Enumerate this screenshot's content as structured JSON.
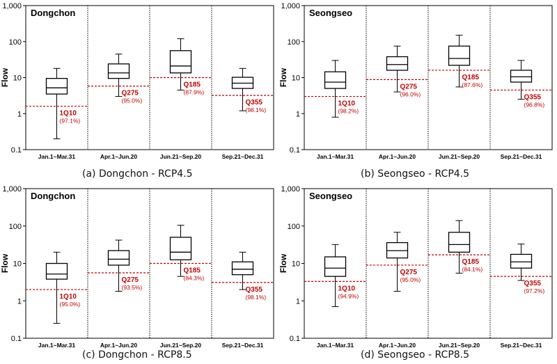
{
  "figure": {
    "captions": [
      "(a) Dongchon - RCP4.5",
      "(b) Seongseo - RCP4.5",
      "(c) Dongchon - RCP8.5",
      "(d) Seongseo - RCP8.5"
    ]
  },
  "chart_data": [
    {
      "type": "box",
      "station": "Dongchon",
      "scenario": "RCP4.5",
      "ylabel": "Flow",
      "yscale": "log",
      "ylim": [
        0.1,
        1000
      ],
      "yticks": [
        "0.1",
        "1",
        "10",
        "100",
        "1,000"
      ],
      "categories": [
        "Jan.1~Mar.31",
        "Apr.1~Jun.20",
        "Jun.21~Sep.20",
        "Sep.21~Dec.31"
      ],
      "boxes": [
        {
          "min": 0.2,
          "q1": 3.5,
          "median": 5.2,
          "q3": 9.5,
          "max": 18
        },
        {
          "min": 3.0,
          "q1": 9.5,
          "median": 13.5,
          "q3": 24,
          "max": 45
        },
        {
          "min": 4.5,
          "q1": 13.5,
          "median": 21,
          "q3": 56,
          "max": 120
        },
        {
          "min": 1.2,
          "q1": 5.0,
          "median": 7.0,
          "q3": 10.2,
          "max": 18
        }
      ],
      "thresholds": [
        {
          "label": "1Q10",
          "pct": "(97.1%)",
          "value": 1.6
        },
        {
          "label": "Q275",
          "pct": "(95.0%)",
          "value": 5.8
        },
        {
          "label": "Q185",
          "pct": "(87.9%)",
          "value": 10.0
        },
        {
          "label": "Q355",
          "pct": "(98.1%)",
          "value": 3.2
        }
      ]
    },
    {
      "type": "box",
      "station": "Seongseo",
      "scenario": "RCP4.5",
      "ylabel": "Flow",
      "yscale": "log",
      "ylim": [
        0.1,
        1000
      ],
      "yticks": [
        "0.1",
        "1",
        "10",
        "100",
        "1,000"
      ],
      "categories": [
        "Jan.1~Mar.31",
        "Apr.1~Jun.20",
        "Jun.21~Sep.20",
        "Sep.21~Dec.31"
      ],
      "boxes": [
        {
          "min": 0.8,
          "q1": 5.0,
          "median": 7.5,
          "q3": 14.5,
          "max": 30
        },
        {
          "min": 4.0,
          "q1": 16,
          "median": 23,
          "q3": 38,
          "max": 75
        },
        {
          "min": 5.5,
          "q1": 22,
          "median": 34,
          "q3": 75,
          "max": 150
        },
        {
          "min": 2.5,
          "q1": 7.5,
          "median": 10.5,
          "q3": 16,
          "max": 30
        }
      ],
      "thresholds": [
        {
          "label": "1Q10",
          "pct": "(98.2%)",
          "value": 3.0
        },
        {
          "label": "Q275",
          "pct": "(96.0%)",
          "value": 8.8
        },
        {
          "label": "Q185",
          "pct": "(87.6%)",
          "value": 16.0
        },
        {
          "label": "Q355",
          "pct": "(96.8%)",
          "value": 4.5
        }
      ]
    },
    {
      "type": "box",
      "station": "Dongchon",
      "scenario": "RCP8.5",
      "ylabel": "Flow",
      "yscale": "log",
      "ylim": [
        0.1,
        1000
      ],
      "yticks": [
        "0.1",
        "1",
        "10",
        "100",
        "1,000"
      ],
      "categories": [
        "Jan.1~Mar.31",
        "Apr.1~Jun.20",
        "Jun.21~Sep.20",
        "Sep.21~Dec.31"
      ],
      "boxes": [
        {
          "min": 0.25,
          "q1": 3.8,
          "median": 5.2,
          "q3": 10,
          "max": 20
        },
        {
          "min": 1.8,
          "q1": 9.0,
          "median": 13,
          "q3": 22,
          "max": 42
        },
        {
          "min": 4.5,
          "q1": 12.5,
          "median": 20,
          "q3": 50,
          "max": 105
        },
        {
          "min": 2.0,
          "q1": 5.0,
          "median": 7.0,
          "q3": 11,
          "max": 20
        }
      ],
      "thresholds": [
        {
          "label": "1Q10",
          "pct": "(95.0%)",
          "value": 2.0
        },
        {
          "label": "Q275",
          "pct": "(93.5%)",
          "value": 5.6
        },
        {
          "label": "Q185",
          "pct": "(84.3%)",
          "value": 10.0
        },
        {
          "label": "Q355",
          "pct": "(98.1%)",
          "value": 3.1
        }
      ]
    },
    {
      "type": "box",
      "station": "Seongseo",
      "scenario": "RCP8.5",
      "ylabel": "Flow",
      "yscale": "log",
      "ylim": [
        0.1,
        1000
      ],
      "yticks": [
        "0.1",
        "1",
        "10",
        "100",
        "1,000"
      ],
      "categories": [
        "Jan.1~Mar.31",
        "Apr.1~Jun.20",
        "Jun.21~Sep.20",
        "Sep.21~Dec.31"
      ],
      "boxes": [
        {
          "min": 0.7,
          "q1": 4.5,
          "median": 7.5,
          "q3": 15,
          "max": 32
        },
        {
          "min": 1.8,
          "q1": 14,
          "median": 22,
          "q3": 36,
          "max": 68
        },
        {
          "min": 5.5,
          "q1": 20,
          "median": 32,
          "q3": 68,
          "max": 140
        },
        {
          "min": 3.5,
          "q1": 7.5,
          "median": 11,
          "q3": 17.5,
          "max": 33
        }
      ],
      "thresholds": [
        {
          "label": "1Q10",
          "pct": "(94.9%)",
          "value": 3.3
        },
        {
          "label": "Q275",
          "pct": "(95.0%)",
          "value": 9.0
        },
        {
          "label": "Q185",
          "pct": "(84.1%)",
          "value": 17.0
        },
        {
          "label": "Q355",
          "pct": "(97.2%)",
          "value": 4.5
        }
      ]
    }
  ]
}
